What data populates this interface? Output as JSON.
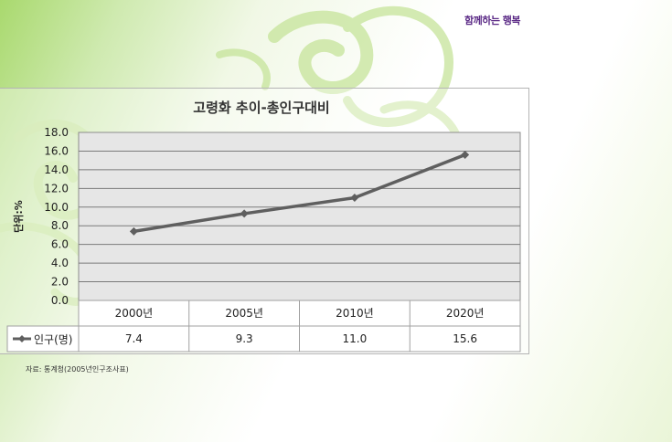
{
  "header": {
    "caption": "함께하는 행복"
  },
  "chart_data": {
    "type": "line",
    "title": "고령화 추이-총인구대비",
    "ylabel": "단위:%",
    "xlabel": "",
    "categories": [
      "2000년",
      "2005년",
      "2010년",
      "2020년"
    ],
    "series": [
      {
        "name": "인구(명)",
        "values": [
          7.4,
          9.3,
          11.0,
          15.6
        ],
        "color": "#5f5f5f",
        "marker": "diamond"
      }
    ],
    "table_values": [
      "7.4",
      "9.3",
      "11.0",
      "15.6"
    ],
    "ylim": [
      0,
      18
    ],
    "yticks": [
      "0.0",
      "2.0",
      "4.0",
      "6.0",
      "8.0",
      "10.0",
      "12.0",
      "14.0",
      "16.0",
      "18.0"
    ],
    "grid": true,
    "legend": "data-table",
    "plot_bg": "#e6e6e6",
    "grid_color": "#7a7a7a"
  },
  "footer": {
    "source": "자료: 통계청(2005년인구조사표)"
  },
  "colors": {
    "caption": "#5b2a86",
    "background_green": "#a9d96e",
    "swirl": "#c6e49a"
  }
}
